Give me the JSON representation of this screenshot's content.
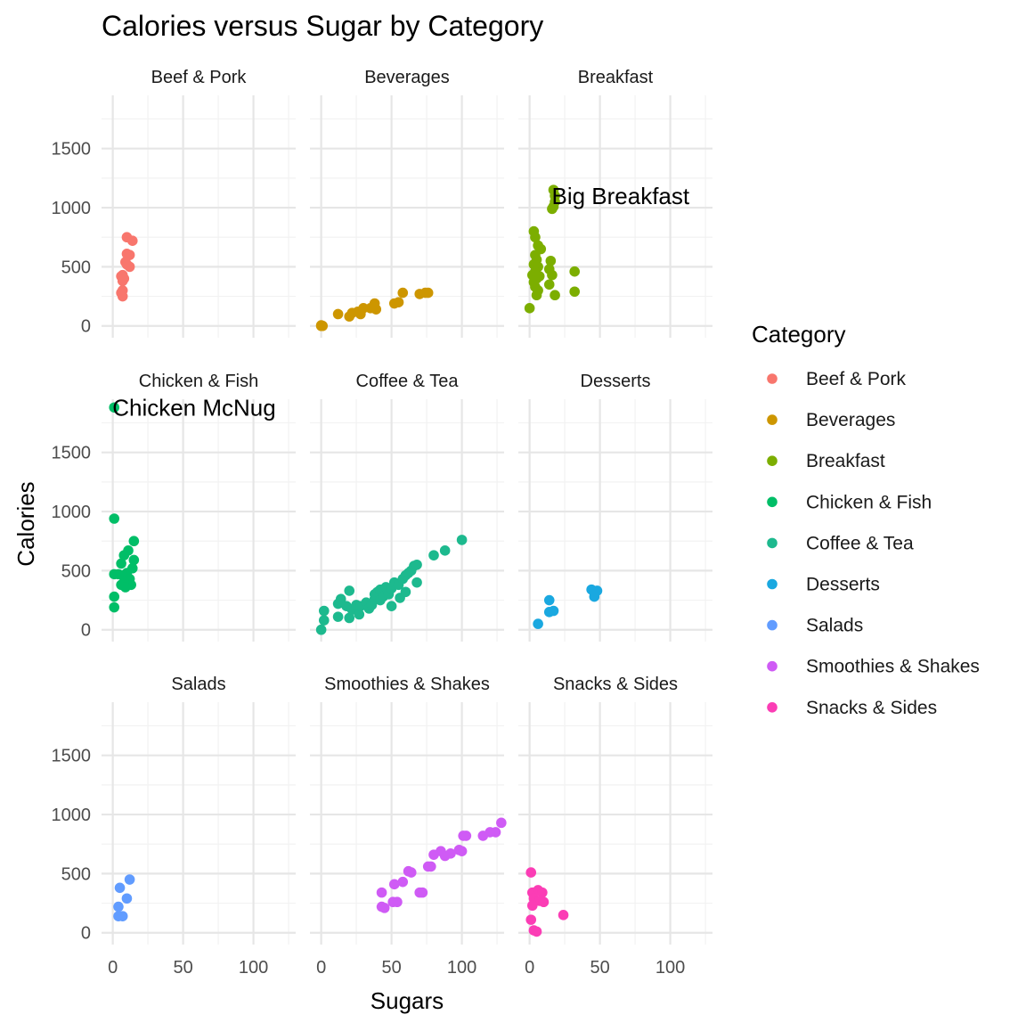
{
  "chart_data": {
    "type": "scatter",
    "title": "Calories versus Sugar by Category",
    "xlabel": "Sugars",
    "ylabel": "Calories",
    "xlim": [
      -8,
      130
    ],
    "ylim": [
      -100,
      1950
    ],
    "x_ticks": [
      0,
      50,
      100
    ],
    "y_ticks": [
      0,
      500,
      1000,
      1500
    ],
    "grid": true,
    "legend": {
      "title": "Category",
      "position": "right"
    },
    "panels": [
      {
        "name": "Beef & Pork",
        "color": "#F8766D",
        "points": [
          [
            10,
            750
          ],
          [
            14,
            720
          ],
          [
            10,
            610
          ],
          [
            12,
            600
          ],
          [
            9,
            540
          ],
          [
            12,
            500
          ],
          [
            10,
            520
          ],
          [
            7,
            430
          ],
          [
            6,
            420
          ],
          [
            8,
            400
          ],
          [
            7,
            380
          ],
          [
            7,
            300
          ],
          [
            6,
            280
          ],
          [
            7,
            250
          ]
        ]
      },
      {
        "name": "Beverages",
        "color": "#CD9600",
        "points": [
          [
            0,
            0
          ],
          [
            0,
            5
          ],
          [
            1,
            0
          ],
          [
            12,
            100
          ],
          [
            20,
            80
          ],
          [
            22,
            110
          ],
          [
            26,
            120
          ],
          [
            28,
            100
          ],
          [
            30,
            150
          ],
          [
            35,
            150
          ],
          [
            38,
            190
          ],
          [
            39,
            140
          ],
          [
            52,
            190
          ],
          [
            55,
            200
          ],
          [
            58,
            280
          ],
          [
            70,
            270
          ],
          [
            74,
            280
          ],
          [
            76,
            280
          ]
        ]
      },
      {
        "name": "Breakfast",
        "color": "#7CAE00",
        "points": [
          [
            17,
            1150
          ],
          [
            18,
            1100
          ],
          [
            18,
            1050
          ],
          [
            17,
            1010
          ],
          [
            16,
            990
          ],
          [
            3,
            800
          ],
          [
            4,
            750
          ],
          [
            6,
            680
          ],
          [
            8,
            650
          ],
          [
            4,
            600
          ],
          [
            5,
            560
          ],
          [
            3,
            520
          ],
          [
            6,
            500
          ],
          [
            4,
            460
          ],
          [
            2,
            430
          ],
          [
            5,
            400
          ],
          [
            7,
            420
          ],
          [
            3,
            370
          ],
          [
            4,
            330
          ],
          [
            6,
            300
          ],
          [
            5,
            260
          ],
          [
            0,
            150
          ],
          [
            15,
            550
          ],
          [
            14,
            480
          ],
          [
            16,
            430
          ],
          [
            14,
            350
          ],
          [
            32,
            460
          ],
          [
            32,
            290
          ],
          [
            18,
            260
          ]
        ]
      },
      {
        "name": "Chicken & Fish",
        "color": "#00BE67",
        "points": [
          [
            1,
            1880
          ],
          [
            1,
            940
          ],
          [
            15,
            750
          ],
          [
            11,
            670
          ],
          [
            8,
            630
          ],
          [
            15,
            590
          ],
          [
            6,
            560
          ],
          [
            14,
            520
          ],
          [
            10,
            480
          ],
          [
            4,
            470
          ],
          [
            1,
            470
          ],
          [
            7,
            460
          ],
          [
            12,
            430
          ],
          [
            8,
            400
          ],
          [
            6,
            380
          ],
          [
            13,
            380
          ],
          [
            9,
            360
          ],
          [
            1,
            280
          ],
          [
            1,
            190
          ]
        ]
      },
      {
        "name": "Coffee & Tea",
        "color": "#00BFC4",
        "colorOverride": "#1DB98E",
        "points": [
          [
            0,
            0
          ],
          [
            2,
            80
          ],
          [
            2,
            160
          ],
          [
            12,
            110
          ],
          [
            12,
            220
          ],
          [
            14,
            260
          ],
          [
            18,
            200
          ],
          [
            20,
            330
          ],
          [
            20,
            100
          ],
          [
            22,
            170
          ],
          [
            25,
            210
          ],
          [
            27,
            130
          ],
          [
            28,
            200
          ],
          [
            32,
            230
          ],
          [
            34,
            180
          ],
          [
            36,
            210
          ],
          [
            38,
            260
          ],
          [
            38,
            300
          ],
          [
            40,
            320
          ],
          [
            42,
            340
          ],
          [
            42,
            250
          ],
          [
            44,
            280
          ],
          [
            46,
            360
          ],
          [
            48,
            300
          ],
          [
            50,
            350
          ],
          [
            50,
            200
          ],
          [
            52,
            400
          ],
          [
            55,
            380
          ],
          [
            56,
            270
          ],
          [
            58,
            430
          ],
          [
            60,
            460
          ],
          [
            60,
            320
          ],
          [
            62,
            480
          ],
          [
            64,
            500
          ],
          [
            66,
            540
          ],
          [
            68,
            550
          ],
          [
            68,
            400
          ],
          [
            80,
            630
          ],
          [
            88,
            670
          ],
          [
            100,
            760
          ]
        ]
      },
      {
        "name": "Desserts",
        "color": "#00A9FF",
        "colorOverride": "#1AA8E0",
        "points": [
          [
            44,
            340
          ],
          [
            48,
            330
          ],
          [
            46,
            280
          ],
          [
            14,
            250
          ],
          [
            14,
            150
          ],
          [
            17,
            160
          ],
          [
            6,
            50
          ]
        ]
      },
      {
        "name": "Salads",
        "color": "#619CFF",
        "points": [
          [
            12,
            450
          ],
          [
            5,
            380
          ],
          [
            10,
            290
          ],
          [
            4,
            220
          ],
          [
            4,
            140
          ],
          [
            7,
            140
          ]
        ]
      },
      {
        "name": "Smoothies & Shakes",
        "color": "#C77CFF",
        "colorOverride": "#CF5BF5",
        "points": [
          [
            128,
            930
          ],
          [
            124,
            850
          ],
          [
            120,
            850
          ],
          [
            115,
            820
          ],
          [
            103,
            820
          ],
          [
            101,
            820
          ],
          [
            98,
            700
          ],
          [
            100,
            690
          ],
          [
            92,
            670
          ],
          [
            88,
            650
          ],
          [
            85,
            690
          ],
          [
            80,
            660
          ],
          [
            78,
            560
          ],
          [
            76,
            560
          ],
          [
            70,
            340
          ],
          [
            72,
            340
          ],
          [
            64,
            510
          ],
          [
            62,
            520
          ],
          [
            58,
            430
          ],
          [
            52,
            410
          ],
          [
            54,
            260
          ],
          [
            51,
            260
          ],
          [
            45,
            210
          ],
          [
            43,
            220
          ],
          [
            43,
            340
          ]
        ]
      },
      {
        "name": "Snacks & Sides",
        "color": "#FF61CC",
        "colorOverride": "#FB3DB5",
        "points": [
          [
            1,
            510
          ],
          [
            2,
            340
          ],
          [
            6,
            360
          ],
          [
            9,
            340
          ],
          [
            3,
            290
          ],
          [
            7,
            270
          ],
          [
            2,
            230
          ],
          [
            10,
            260
          ],
          [
            24,
            150
          ],
          [
            1,
            110
          ],
          [
            3,
            20
          ],
          [
            5,
            10
          ]
        ]
      }
    ],
    "annotations": [
      {
        "panel": "Breakfast",
        "text": "Big Breakfast",
        "x": 17,
        "y": 1100
      },
      {
        "panel": "Chicken & Fish",
        "text": "Chicken McNug",
        "x": 1,
        "y": 1880
      }
    ]
  }
}
